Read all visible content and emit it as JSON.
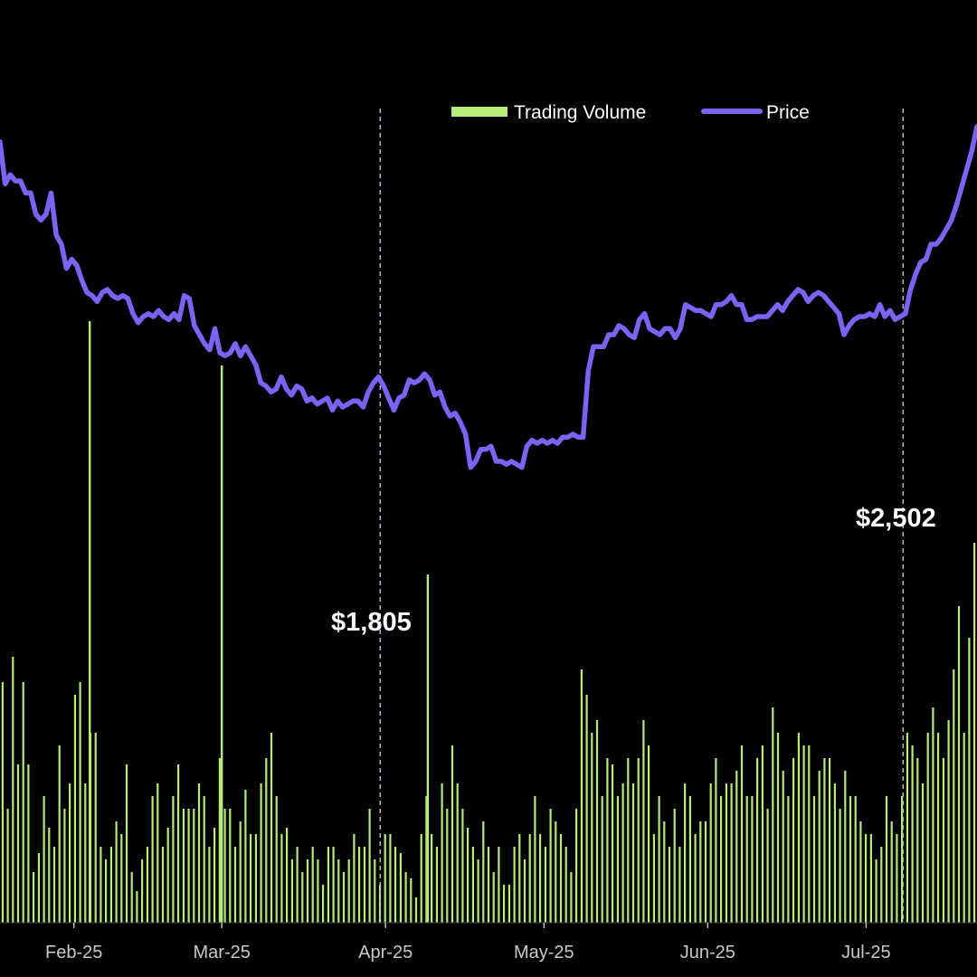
{
  "chart_data": {
    "type": "bar+line",
    "colors": {
      "background": "#000000",
      "volume": "#b5ec7a",
      "price": "#7a63f5",
      "refline": "#aab8c8",
      "text": "#ffffff",
      "tick": "#c9c9c9"
    },
    "legend": {
      "volume_label": "Trading Volume",
      "price_label": "Price",
      "placement": "top-center"
    },
    "x_ticks": [
      "Feb-25",
      "Mar-25",
      "Apr-25",
      "May-25",
      "Jun-25",
      "Jul-25"
    ],
    "x_range": [
      "2025-01-18",
      "2025-07-22"
    ],
    "price_range": [
      0,
      3000
    ],
    "volume_range": [
      0,
      100
    ],
    "annotations": [
      {
        "label": "$1,805",
        "date": "2025-03-31",
        "value": 1805
      },
      {
        "label": "$2,502",
        "date": "2025-07-08",
        "value": 2502
      }
    ],
    "price_series": [
      2590,
      2450,
      2480,
      2460,
      2460,
      2420,
      2420,
      2350,
      2330,
      2350,
      2420,
      2280,
      2250,
      2170,
      2200,
      2180,
      2130,
      2090,
      2080,
      2060,
      2090,
      2100,
      2080,
      2070,
      2080,
      2070,
      2020,
      1990,
      2010,
      2020,
      2010,
      2030,
      2010,
      2000,
      2020,
      2000,
      2080,
      2070,
      1980,
      1950,
      1920,
      1900,
      1970,
      1890,
      1880,
      1890,
      1920,
      1880,
      1910,
      1880,
      1850,
      1790,
      1780,
      1760,
      1770,
      1810,
      1770,
      1750,
      1780,
      1770,
      1730,
      1740,
      1720,
      1730,
      1740,
      1700,
      1730,
      1710,
      1720,
      1730,
      1730,
      1710,
      1760,
      1790,
      1810,
      1780,
      1740,
      1700,
      1740,
      1750,
      1800,
      1790,
      1800,
      1820,
      1800,
      1750,
      1760,
      1710,
      1680,
      1690,
      1660,
      1620,
      1510,
      1530,
      1570,
      1570,
      1580,
      1530,
      1530,
      1520,
      1530,
      1520,
      1510,
      1580,
      1600,
      1590,
      1600,
      1590,
      1600,
      1590,
      1610,
      1610,
      1620,
      1610,
      1610,
      1830,
      1910,
      1910,
      1910,
      1950,
      1950,
      1980,
      1970,
      1950,
      1940,
      2000,
      2020,
      1970,
      1960,
      1950,
      1970,
      1970,
      1940,
      1970,
      2050,
      2040,
      2030,
      2030,
      2020,
      2010,
      2050,
      2050,
      2060,
      2080,
      2050,
      2050,
      2000,
      2000,
      2010,
      2010,
      2010,
      2030,
      2050,
      2030,
      2060,
      2080,
      2100,
      2090,
      2060,
      2080,
      2090,
      2080,
      2060,
      2040,
      2020,
      1950,
      1980,
      2000,
      2010,
      2010,
      2020,
      2010,
      2050,
      2010,
      2030,
      2000,
      2010,
      2020,
      2100,
      2150,
      2190,
      2200,
      2250,
      2250,
      2270,
      2300,
      2330,
      2380,
      2440,
      2500,
      2560,
      2640
    ],
    "volume_series": [
      38,
      18,
      42,
      25,
      38,
      25,
      8,
      11,
      20,
      15,
      12,
      28,
      18,
      22,
      36,
      38,
      22,
      30,
      30,
      12,
      10,
      12,
      16,
      14,
      25,
      8,
      5,
      10,
      12,
      20,
      22,
      12,
      15,
      20,
      25,
      18,
      18,
      18,
      22,
      20,
      12,
      15,
      26,
      18,
      18,
      12,
      16,
      21,
      14,
      14,
      22,
      26,
      30,
      20,
      14,
      15,
      10,
      12,
      8,
      10,
      12,
      10,
      6,
      12,
      12,
      10,
      8,
      10,
      14,
      12,
      12,
      18,
      10,
      6,
      14,
      14,
      12,
      11,
      8,
      7,
      4,
      14,
      20,
      14,
      12,
      22,
      18,
      28,
      22,
      18,
      15,
      12,
      10,
      16,
      12,
      8,
      12,
      6,
      6,
      12,
      14,
      10,
      14,
      20,
      14,
      12,
      18,
      16,
      14,
      12,
      8,
      18,
      40,
      36,
      30,
      32,
      20,
      26,
      25,
      20,
      22,
      26,
      22,
      26,
      32,
      28,
      14,
      20,
      16,
      12,
      18,
      12,
      22,
      20,
      14,
      16,
      16,
      22,
      26,
      20,
      22,
      22,
      24,
      28,
      20,
      20,
      26,
      28,
      18,
      34,
      30,
      24,
      20,
      26,
      30,
      28,
      28,
      20,
      24,
      26,
      26,
      22,
      18,
      24,
      20,
      20,
      16,
      14,
      14,
      10,
      12,
      20,
      16,
      14,
      20,
      30,
      28,
      26,
      22,
      30,
      34,
      30,
      26,
      32,
      40,
      50,
      30,
      45,
      60
    ],
    "volume_spikes": [
      {
        "date": "2025-02-04",
        "value": 95
      },
      {
        "date": "2025-03-01",
        "value": 88
      },
      {
        "date": "2025-04-09",
        "value": 55
      }
    ]
  }
}
